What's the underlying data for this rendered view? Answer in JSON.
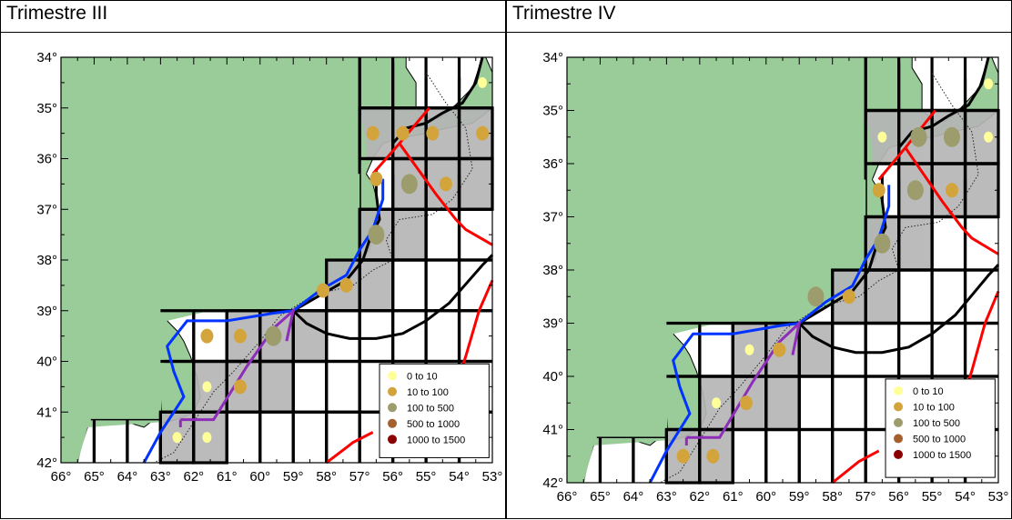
{
  "panels": [
    {
      "id": "left",
      "title": "Trimestre III",
      "dots": [
        {
          "lon": 53.3,
          "lat": 34.5,
          "bin": 0
        },
        {
          "lon": 56.6,
          "lat": 35.5,
          "bin": 1
        },
        {
          "lon": 55.7,
          "lat": 35.5,
          "bin": 1
        },
        {
          "lon": 54.8,
          "lat": 35.5,
          "bin": 1
        },
        {
          "lon": 53.3,
          "lat": 35.5,
          "bin": 1
        },
        {
          "lon": 56.5,
          "lat": 36.4,
          "bin": 1
        },
        {
          "lon": 55.5,
          "lat": 36.5,
          "bin": 2
        },
        {
          "lon": 54.4,
          "lat": 36.5,
          "bin": 1
        },
        {
          "lon": 56.5,
          "lat": 37.5,
          "bin": 2
        },
        {
          "lon": 57.4,
          "lat": 38.5,
          "bin": 1
        },
        {
          "lon": 58.1,
          "lat": 38.6,
          "bin": 1
        },
        {
          "lon": 59.6,
          "lat": 39.5,
          "bin": 2
        },
        {
          "lon": 61.6,
          "lat": 39.5,
          "bin": 1
        },
        {
          "lon": 60.6,
          "lat": 39.5,
          "bin": 1
        },
        {
          "lon": 61.6,
          "lat": 40.5,
          "bin": 0
        },
        {
          "lon": 60.6,
          "lat": 40.5,
          "bin": 1
        },
        {
          "lon": 62.5,
          "lat": 41.5,
          "bin": 0
        },
        {
          "lon": 61.6,
          "lat": 41.5,
          "bin": 0
        }
      ]
    },
    {
      "id": "right",
      "title": "Trimestre IV",
      "dots": [
        {
          "lon": 53.3,
          "lat": 34.5,
          "bin": 0
        },
        {
          "lon": 56.5,
          "lat": 35.5,
          "bin": 0
        },
        {
          "lon": 55.4,
          "lat": 35.5,
          "bin": 2
        },
        {
          "lon": 54.4,
          "lat": 35.5,
          "bin": 2
        },
        {
          "lon": 53.3,
          "lat": 35.5,
          "bin": 0
        },
        {
          "lon": 56.6,
          "lat": 36.5,
          "bin": 1
        },
        {
          "lon": 55.5,
          "lat": 36.5,
          "bin": 2
        },
        {
          "lon": 54.4,
          "lat": 36.5,
          "bin": 1
        },
        {
          "lon": 56.5,
          "lat": 37.5,
          "bin": 2
        },
        {
          "lon": 57.5,
          "lat": 38.5,
          "bin": 1
        },
        {
          "lon": 58.5,
          "lat": 38.5,
          "bin": 2
        },
        {
          "lon": 60.5,
          "lat": 39.5,
          "bin": 0
        },
        {
          "lon": 59.6,
          "lat": 39.5,
          "bin": 1
        },
        {
          "lon": 61.5,
          "lat": 40.5,
          "bin": 0
        },
        {
          "lon": 60.6,
          "lat": 40.5,
          "bin": 1
        },
        {
          "lon": 62.5,
          "lat": 41.5,
          "bin": 1
        },
        {
          "lon": 61.6,
          "lat": 41.5,
          "bin": 1
        }
      ]
    }
  ],
  "map": {
    "lon_ticks": [
      "66°",
      "65°",
      "64°",
      "63°",
      "62°",
      "61°",
      "60°",
      "59°",
      "58°",
      "57°",
      "56°",
      "55°",
      "54°",
      "53°"
    ],
    "lat_ticks": [
      "34°",
      "35°",
      "36°",
      "37°",
      "38°",
      "39°",
      "40°",
      "41°",
      "42°"
    ],
    "lon_range": [
      66,
      53
    ],
    "lat_range": [
      34,
      42
    ]
  },
  "legend": {
    "entries": [
      {
        "label": "0  to  10",
        "color": "#ffff99"
      },
      {
        "label": "10  to  100",
        "color": "#d4a43c"
      },
      {
        "label": "100  to  500",
        "color": "#9c9c6c"
      },
      {
        "label": "500  to  1000",
        "color": "#a5602f"
      },
      {
        "label": "1000  to  1500",
        "color": "#8b0000"
      }
    ]
  },
  "colors": {
    "land": "#99cc99",
    "shaded_cell": "#b5b5b5",
    "grid": "#000000",
    "blue_line": "#0033ff",
    "purple_line": "#8e2eb8",
    "red_line": "#ff0000",
    "black_line": "#000000"
  }
}
